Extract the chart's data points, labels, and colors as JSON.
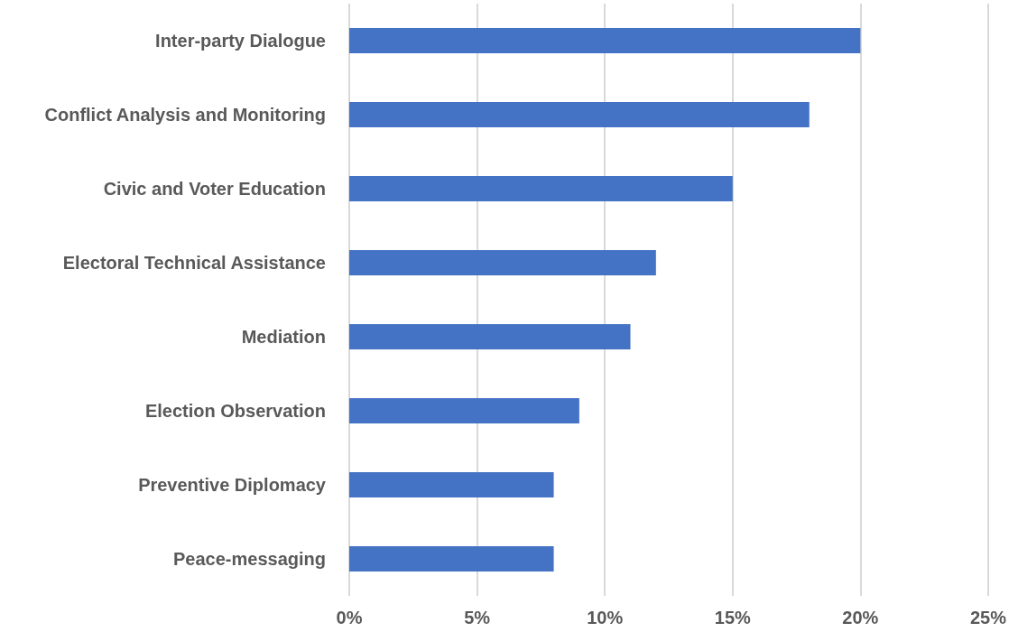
{
  "chart_data": {
    "type": "bar",
    "orientation": "horizontal",
    "categories": [
      "Inter-party Dialogue",
      "Conflict Analysis and Monitoring",
      "Civic and Voter Education",
      "Electoral Technical Assistance",
      "Mediation",
      "Election Observation",
      "Preventive Diplomacy",
      "Peace-messaging"
    ],
    "values": [
      20,
      18,
      15,
      12,
      11,
      9,
      8,
      8
    ],
    "color": "#4472c4",
    "xlim": [
      0,
      25
    ],
    "xticks": [
      {
        "value": 0,
        "label": "0%"
      },
      {
        "value": 5,
        "label": "5%"
      },
      {
        "value": 10,
        "label": "10%"
      },
      {
        "value": 15,
        "label": "15%"
      },
      {
        "value": 20,
        "label": "20%"
      },
      {
        "value": 25,
        "label": "25%"
      }
    ],
    "grid": "x"
  }
}
